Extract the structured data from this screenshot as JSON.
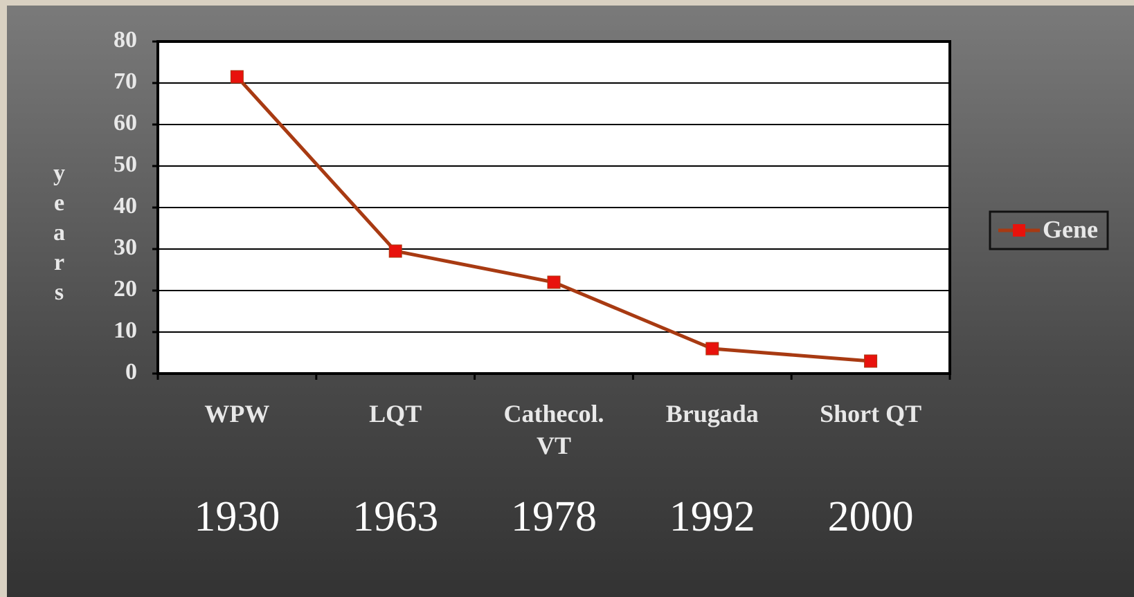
{
  "chart_data": {
    "type": "line",
    "y_label": "years",
    "categories": [
      "WPW",
      "LQT",
      "Cathecol. VT",
      "Brugada",
      "Short QT"
    ],
    "category_years": [
      "1930",
      "1963",
      "1978",
      "1992",
      "2000"
    ],
    "series": [
      {
        "name": "Gene",
        "color": "#a83a12",
        "marker_color": "#e8120c",
        "values": [
          71.5,
          29.5,
          22,
          6,
          3
        ]
      }
    ],
    "ylim": [
      0,
      80
    ],
    "yticks": [
      0,
      10,
      20,
      30,
      40,
      50,
      60,
      70,
      80
    ],
    "grid": true,
    "legend": "right"
  }
}
